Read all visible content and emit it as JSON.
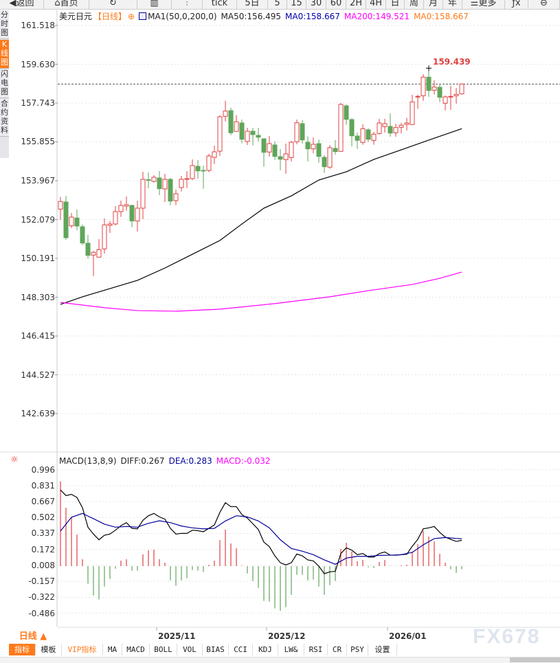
{
  "toolbar": {
    "items": [
      {
        "label": "◀返回",
        "w": 64,
        "name": "back-button"
      },
      {
        "label": "⌂首页",
        "w": 66,
        "name": "home-button"
      },
      {
        "label": "↻",
        "w": 70,
        "name": "refresh-button"
      },
      {
        "label": "▥",
        "w": 50,
        "name": "chart-type-button"
      },
      {
        "label": "⫶",
        "w": 45,
        "name": "candle-style-button"
      },
      {
        "label": "tick",
        "w": 50,
        "name": "period-tick"
      },
      {
        "label": "5日",
        "w": 45,
        "name": "period-5day"
      },
      {
        "label": "5",
        "w": 28,
        "name": "period-5min"
      },
      {
        "label": "15",
        "w": 28,
        "name": "period-15min"
      },
      {
        "label": "30",
        "w": 29,
        "name": "period-30min"
      },
      {
        "label": "60",
        "w": 29,
        "name": "period-60min"
      },
      {
        "label": "2H",
        "w": 29,
        "name": "period-2h"
      },
      {
        "label": "4H",
        "w": 29,
        "name": "period-4h"
      },
      {
        "label": "日",
        "w": 27,
        "name": "period-day"
      },
      {
        "label": "周",
        "w": 28,
        "name": "period-week"
      },
      {
        "label": "月",
        "w": 28,
        "name": "period-month"
      },
      {
        "label": "年",
        "w": 28,
        "name": "period-year"
      },
      {
        "label": "☰更多",
        "w": 62,
        "name": "more-button"
      },
      {
        "label": "ƒx",
        "w": 34,
        "name": "formula-button"
      },
      {
        "label": "⊖",
        "w": 46,
        "name": "zoom-out-button"
      }
    ]
  },
  "sidebar": {
    "items": [
      {
        "label": "分时图",
        "active": false
      },
      {
        "label": "K线图",
        "active": true
      },
      {
        "label": "闪电图",
        "active": false
      },
      {
        "label": "合约资料",
        "active": false
      }
    ]
  },
  "legend": {
    "symbol": "美元日元",
    "period": "【日线】",
    "indicator": "MA1(50,0,200,0)",
    "ma50": "MA50:156.495",
    "ma0a": "MA0:158.667",
    "ma200": "MA200:149.521",
    "ma0b": "MA0:158.667"
  },
  "macd_legend": {
    "name": "MACD(13,8,9)",
    "diff": "DIFF:0.267",
    "dea": "DEA:0.283",
    "macd": "MACD:-0.032"
  },
  "colors": {
    "up": "#e04040",
    "down": "#5fa55a",
    "ma50": "#000000",
    "ma200": "#ff00ff",
    "ma0a": "#0000aa",
    "ma0b": "#ff7a1a",
    "dea": "#000099",
    "diff": "#000000",
    "current_line": "#1e7de0"
  },
  "bottom": {
    "period_label": "日线 ▲",
    "tabs": [
      {
        "label": "指标",
        "cls": "active"
      },
      {
        "label": "模板",
        "cls": ""
      },
      {
        "label": "VIP指标",
        "cls": "vip"
      },
      {
        "label": "MA",
        "cls": ""
      },
      {
        "label": "MACD",
        "cls": ""
      },
      {
        "label": "BOLL",
        "cls": ""
      },
      {
        "label": "VOL",
        "cls": ""
      },
      {
        "label": "BIAS",
        "cls": ""
      },
      {
        "label": "CCI",
        "cls": ""
      },
      {
        "label": "KDJ",
        "cls": ""
      },
      {
        "label": "LW&",
        "cls": ""
      },
      {
        "label": "RSI",
        "cls": ""
      },
      {
        "label": "CR",
        "cls": ""
      },
      {
        "label": "PSY",
        "cls": ""
      },
      {
        "label": "设置",
        "cls": ""
      }
    ]
  },
  "watermark": "FX678",
  "chart_data": [
    {
      "type": "candlestick",
      "title": "美元日元",
      "high_label": "159.439",
      "current_price": 158.667,
      "y_ticks": [
        "161.518",
        "159.630",
        "157.743",
        "155.855",
        "153.967",
        "152.079",
        "150.191",
        "148.303",
        "146.415",
        "144.527",
        "142.639"
      ],
      "x_ticks": [
        {
          "label": "2025/11",
          "index": 18
        },
        {
          "label": "2025/12",
          "index": 38
        },
        {
          "label": "2026/01",
          "index": 60
        }
      ],
      "ohlc": [
        [
          152.587,
          153.176,
          152.063,
          152.955
        ],
        [
          152.932,
          153.232,
          151.094,
          151.194
        ],
        [
          151.772,
          152.397,
          151.672,
          152.197
        ],
        [
          152.153,
          152.564,
          151.562,
          151.762
        ],
        [
          151.729,
          151.839,
          150.837,
          150.937
        ],
        [
          150.927,
          151.328,
          150.169,
          150.336
        ],
        [
          150.349,
          150.56,
          149.333,
          150.483
        ],
        [
          150.249,
          151.127,
          150.249,
          150.616
        ],
        [
          150.65,
          152.13,
          150.426,
          151.819
        ],
        [
          151.796,
          152.006,
          151.428,
          151.862
        ],
        [
          151.862,
          152.731,
          151.796,
          152.464
        ],
        [
          152.464,
          152.998,
          152.207,
          152.765
        ],
        [
          152.731,
          153.199,
          152.507,
          152.798
        ],
        [
          152.765,
          152.798,
          151.705,
          152.006
        ],
        [
          152.006,
          152.998,
          151.495,
          152.631
        ],
        [
          152.631,
          154.402,
          152.096,
          154.034
        ],
        [
          154.017,
          154.368,
          153.6,
          153.984
        ],
        [
          153.934,
          154.235,
          153.877,
          154.134
        ],
        [
          154.101,
          154.435,
          153.266,
          153.577
        ],
        [
          153.566,
          154.301,
          152.932,
          154.034
        ],
        [
          154.034,
          154.101,
          152.775,
          152.975
        ],
        [
          152.998,
          153.533,
          152.775,
          153.333
        ],
        [
          153.633,
          154.201,
          153.443,
          154.034
        ],
        [
          154.044,
          154.435,
          153.61,
          154.068
        ],
        [
          154.068,
          155.003,
          154.001,
          154.702
        ],
        [
          154.669,
          154.97,
          154.068,
          154.445
        ],
        [
          154.468,
          154.702,
          153.577,
          154.435
        ],
        [
          154.468,
          155.27,
          154.378,
          155.17
        ],
        [
          155.103,
          155.671,
          154.779,
          155.371
        ],
        [
          155.404,
          157.151,
          155.18,
          157.074
        ],
        [
          157.098,
          157.853,
          156.851,
          157.352
        ],
        [
          157.375,
          157.519,
          156.182,
          156.296
        ],
        [
          156.363,
          157.151,
          156.35,
          156.831
        ],
        [
          156.774,
          156.941,
          155.781,
          155.982
        ],
        [
          155.872,
          156.54,
          155.705,
          156.373
        ],
        [
          156.373,
          156.54,
          155.681,
          156.206
        ],
        [
          156.172,
          156.54,
          155.872,
          156.082
        ],
        [
          156.005,
          156.005,
          154.646,
          155.347
        ],
        [
          155.361,
          156.139,
          155.137,
          155.771
        ],
        [
          155.705,
          155.872,
          154.98,
          155.147
        ],
        [
          155.137,
          155.504,
          154.468,
          155.013
        ],
        [
          154.993,
          155.771,
          154.311,
          155.27
        ],
        [
          155.093,
          155.905,
          154.903,
          155.838
        ],
        [
          155.862,
          156.941,
          155.738,
          156.784
        ],
        [
          156.74,
          156.908,
          155.771,
          155.949
        ],
        [
          155.838,
          156.116,
          154.903,
          155.514
        ],
        [
          155.514,
          156.072,
          155.304,
          155.738
        ],
        [
          155.771,
          155.972,
          154.846,
          155.147
        ],
        [
          155.103,
          155.213,
          154.345,
          154.646
        ],
        [
          154.626,
          155.705,
          154.545,
          155.571
        ],
        [
          155.538,
          155.939,
          155.237,
          155.381
        ],
        [
          155.394,
          157.743,
          155.381,
          157.676
        ],
        [
          157.609,
          157.676,
          156.684,
          156.951
        ],
        [
          156.941,
          157.008,
          155.638,
          156.149
        ],
        [
          156.139,
          156.306,
          155.514,
          155.928
        ],
        [
          155.828,
          156.707,
          155.715,
          156.496
        ],
        [
          156.44,
          156.517,
          155.848,
          155.982
        ],
        [
          155.928,
          156.34,
          155.715,
          156.229
        ],
        [
          156.263,
          156.974,
          156.206,
          156.774
        ],
        [
          156.597,
          156.974,
          156.306,
          156.74
        ],
        [
          156.607,
          157.242,
          156.105,
          156.283
        ],
        [
          156.296,
          156.74,
          156.105,
          156.55
        ],
        [
          156.563,
          156.784,
          156.263,
          156.664
        ],
        [
          156.707,
          157.018,
          156.406,
          156.774
        ],
        [
          156.697,
          158.144,
          156.684,
          157.799
        ],
        [
          158.033,
          158.144,
          157.475,
          158.067
        ],
        [
          158.1,
          159.146,
          157.853,
          159.002
        ],
        [
          159.002,
          159.439,
          158.043,
          158.354
        ],
        [
          158.367,
          158.845,
          158.154,
          158.521
        ],
        [
          158.511,
          158.678,
          157.799,
          158.02
        ],
        [
          157.733,
          158.11,
          157.385,
          158.043
        ],
        [
          158.033,
          158.578,
          157.409,
          158.067
        ],
        [
          158.1,
          158.478,
          157.719,
          158.167
        ],
        [
          158.187,
          158.704,
          158.154,
          158.667
        ]
      ],
      "ma50": [
        [
          0,
          147.95
        ],
        [
          4,
          148.32
        ],
        [
          9,
          148.72
        ],
        [
          14,
          149.12
        ],
        [
          19,
          149.72
        ],
        [
          24,
          150.39
        ],
        [
          29,
          151.06
        ],
        [
          33,
          151.86
        ],
        [
          37,
          152.63
        ],
        [
          42,
          153.23
        ],
        [
          47,
          154.0
        ],
        [
          52,
          154.4
        ],
        [
          57,
          155.0
        ],
        [
          62,
          155.47
        ],
        [
          67,
          155.94
        ],
        [
          73,
          156.495
        ]
      ],
      "ma200": [
        [
          0,
          148.05
        ],
        [
          8,
          147.79
        ],
        [
          14,
          147.65
        ],
        [
          21,
          147.62
        ],
        [
          29,
          147.72
        ],
        [
          39,
          147.99
        ],
        [
          49,
          148.32
        ],
        [
          56,
          148.62
        ],
        [
          64,
          148.92
        ],
        [
          69,
          149.22
        ],
        [
          73,
          149.521
        ]
      ]
    },
    {
      "type": "macd",
      "y_ticks": [
        "0.996",
        "0.831",
        "0.667",
        "0.502",
        "0.337",
        "0.172",
        "0.008",
        "-0.157",
        "-0.322",
        "-0.486"
      ],
      "macd": [
        0.875,
        0.603,
        0.503,
        0.326,
        0.071,
        -0.182,
        -0.303,
        -0.343,
        -0.21,
        -0.132,
        -0.026,
        0.057,
        0.071,
        -0.047,
        -0.047,
        0.123,
        0.163,
        0.17,
        0.071,
        0.035,
        -0.147,
        -0.203,
        -0.147,
        -0.125,
        -0.04,
        -0.047,
        -0.061,
        0.014,
        0.057,
        0.269,
        0.378,
        0.234,
        0.184,
        0.005,
        -0.076,
        -0.154,
        -0.225,
        -0.359,
        -0.366,
        -0.437,
        -0.461,
        -0.423,
        -0.296,
        -0.09,
        -0.09,
        -0.147,
        -0.139,
        -0.21,
        -0.296,
        -0.196,
        -0.154,
        0.177,
        0.241,
        0.151,
        0.05,
        0.064,
        -0.012,
        -0.019,
        0.043,
        0.064,
        0.003,
        -0.002,
        0.007,
        0.014,
        0.149,
        0.227,
        0.364,
        0.305,
        0.255,
        0.128,
        0.035,
        -0.033,
        -0.069,
        -0.032
      ],
      "diff": [
        0.787,
        0.728,
        0.741,
        0.709,
        0.603,
        0.402,
        0.331,
        0.272,
        0.319,
        0.331,
        0.371,
        0.418,
        0.449,
        0.39,
        0.385,
        0.473,
        0.52,
        0.544,
        0.508,
        0.485,
        0.39,
        0.331,
        0.338,
        0.338,
        0.371,
        0.366,
        0.355,
        0.39,
        0.425,
        0.555,
        0.655,
        0.614,
        0.614,
        0.532,
        0.496,
        0.437,
        0.378,
        0.248,
        0.201,
        0.106,
        0.035,
        0.012,
        0.035,
        0.125,
        0.106,
        0.064,
        0.054,
        0.0,
        -0.078,
        -0.059,
        -0.054,
        0.13,
        0.189,
        0.165,
        0.118,
        0.13,
        0.094,
        0.094,
        0.13,
        0.146,
        0.113,
        0.113,
        0.118,
        0.123,
        0.205,
        0.276,
        0.385,
        0.395,
        0.409,
        0.348,
        0.3,
        0.276,
        0.255,
        0.267
      ],
      "dea": [
        [
          0,
          0.362
        ],
        [
          2,
          0.504
        ],
        [
          4,
          0.544
        ],
        [
          6,
          0.49
        ],
        [
          8,
          0.433
        ],
        [
          10,
          0.402
        ],
        [
          12,
          0.409
        ],
        [
          14,
          0.402
        ],
        [
          16,
          0.442
        ],
        [
          18,
          0.468
        ],
        [
          20,
          0.449
        ],
        [
          22,
          0.414
        ],
        [
          24,
          0.395
        ],
        [
          26,
          0.385
        ],
        [
          28,
          0.39
        ],
        [
          30,
          0.466
        ],
        [
          32,
          0.52
        ],
        [
          34,
          0.508
        ],
        [
          36,
          0.466
        ],
        [
          38,
          0.395
        ],
        [
          40,
          0.272
        ],
        [
          42,
          0.182
        ],
        [
          44,
          0.154
        ],
        [
          46,
          0.118
        ],
        [
          48,
          0.064
        ],
        [
          50,
          0.019
        ],
        [
          52,
          0.083
        ],
        [
          54,
          0.101
        ],
        [
          56,
          0.101
        ],
        [
          58,
          0.111
        ],
        [
          60,
          0.113
        ],
        [
          62,
          0.118
        ],
        [
          64,
          0.142
        ],
        [
          66,
          0.22
        ],
        [
          68,
          0.284
        ],
        [
          70,
          0.295
        ],
        [
          72,
          0.286
        ],
        [
          73,
          0.283
        ]
      ]
    }
  ]
}
